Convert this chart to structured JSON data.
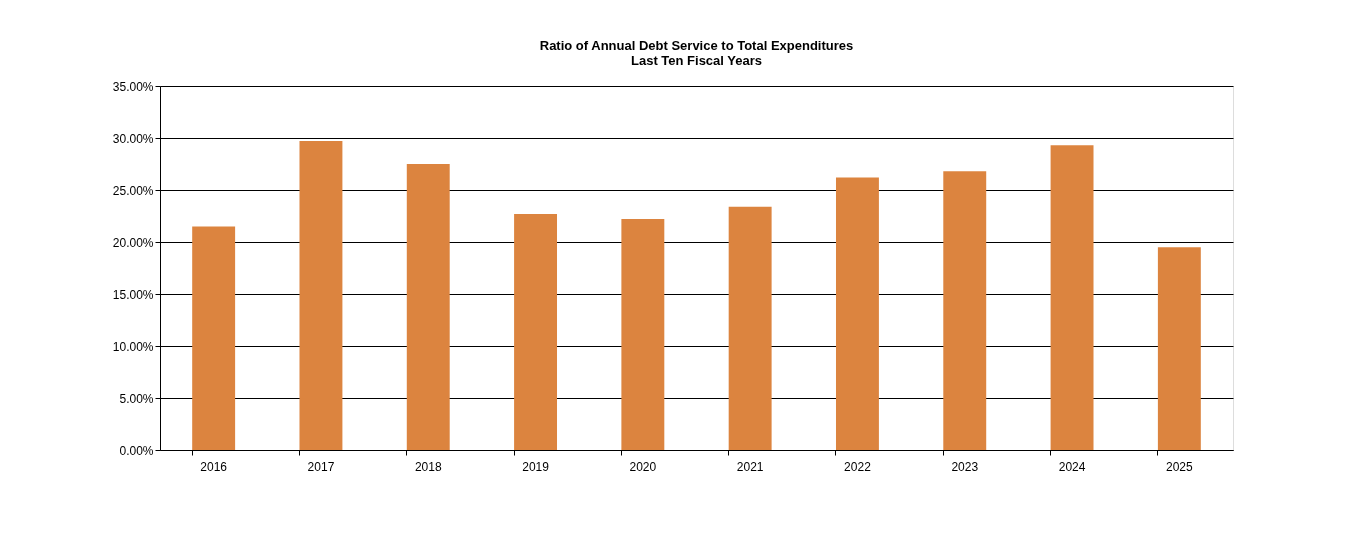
{
  "chart_data": {
    "type": "bar",
    "title": "Ratio of Annual Debt Service to Total Expenditures",
    "subtitle": "Last Ten Fiscal Years",
    "categories": [
      "2016",
      "2017",
      "2018",
      "2019",
      "2020",
      "2021",
      "2022",
      "2023",
      "2024",
      "2025"
    ],
    "values": [
      21.5,
      29.7,
      27.5,
      22.7,
      22.2,
      23.4,
      26.2,
      26.8,
      29.3,
      19.5
    ],
    "color": "#dc843f",
    "ylim": [
      0,
      35
    ],
    "yticks": [
      {
        "value": 0,
        "label": "0.00%"
      },
      {
        "value": 5,
        "label": "5.00%"
      },
      {
        "value": 10,
        "label": "10.00%"
      },
      {
        "value": 15,
        "label": "15.00%"
      },
      {
        "value": 20,
        "label": "20.00%"
      },
      {
        "value": 25,
        "label": "25.00%"
      },
      {
        "value": 30,
        "label": "30.00%"
      },
      {
        "value": 35,
        "label": "35.00%"
      }
    ],
    "grid": "y"
  }
}
